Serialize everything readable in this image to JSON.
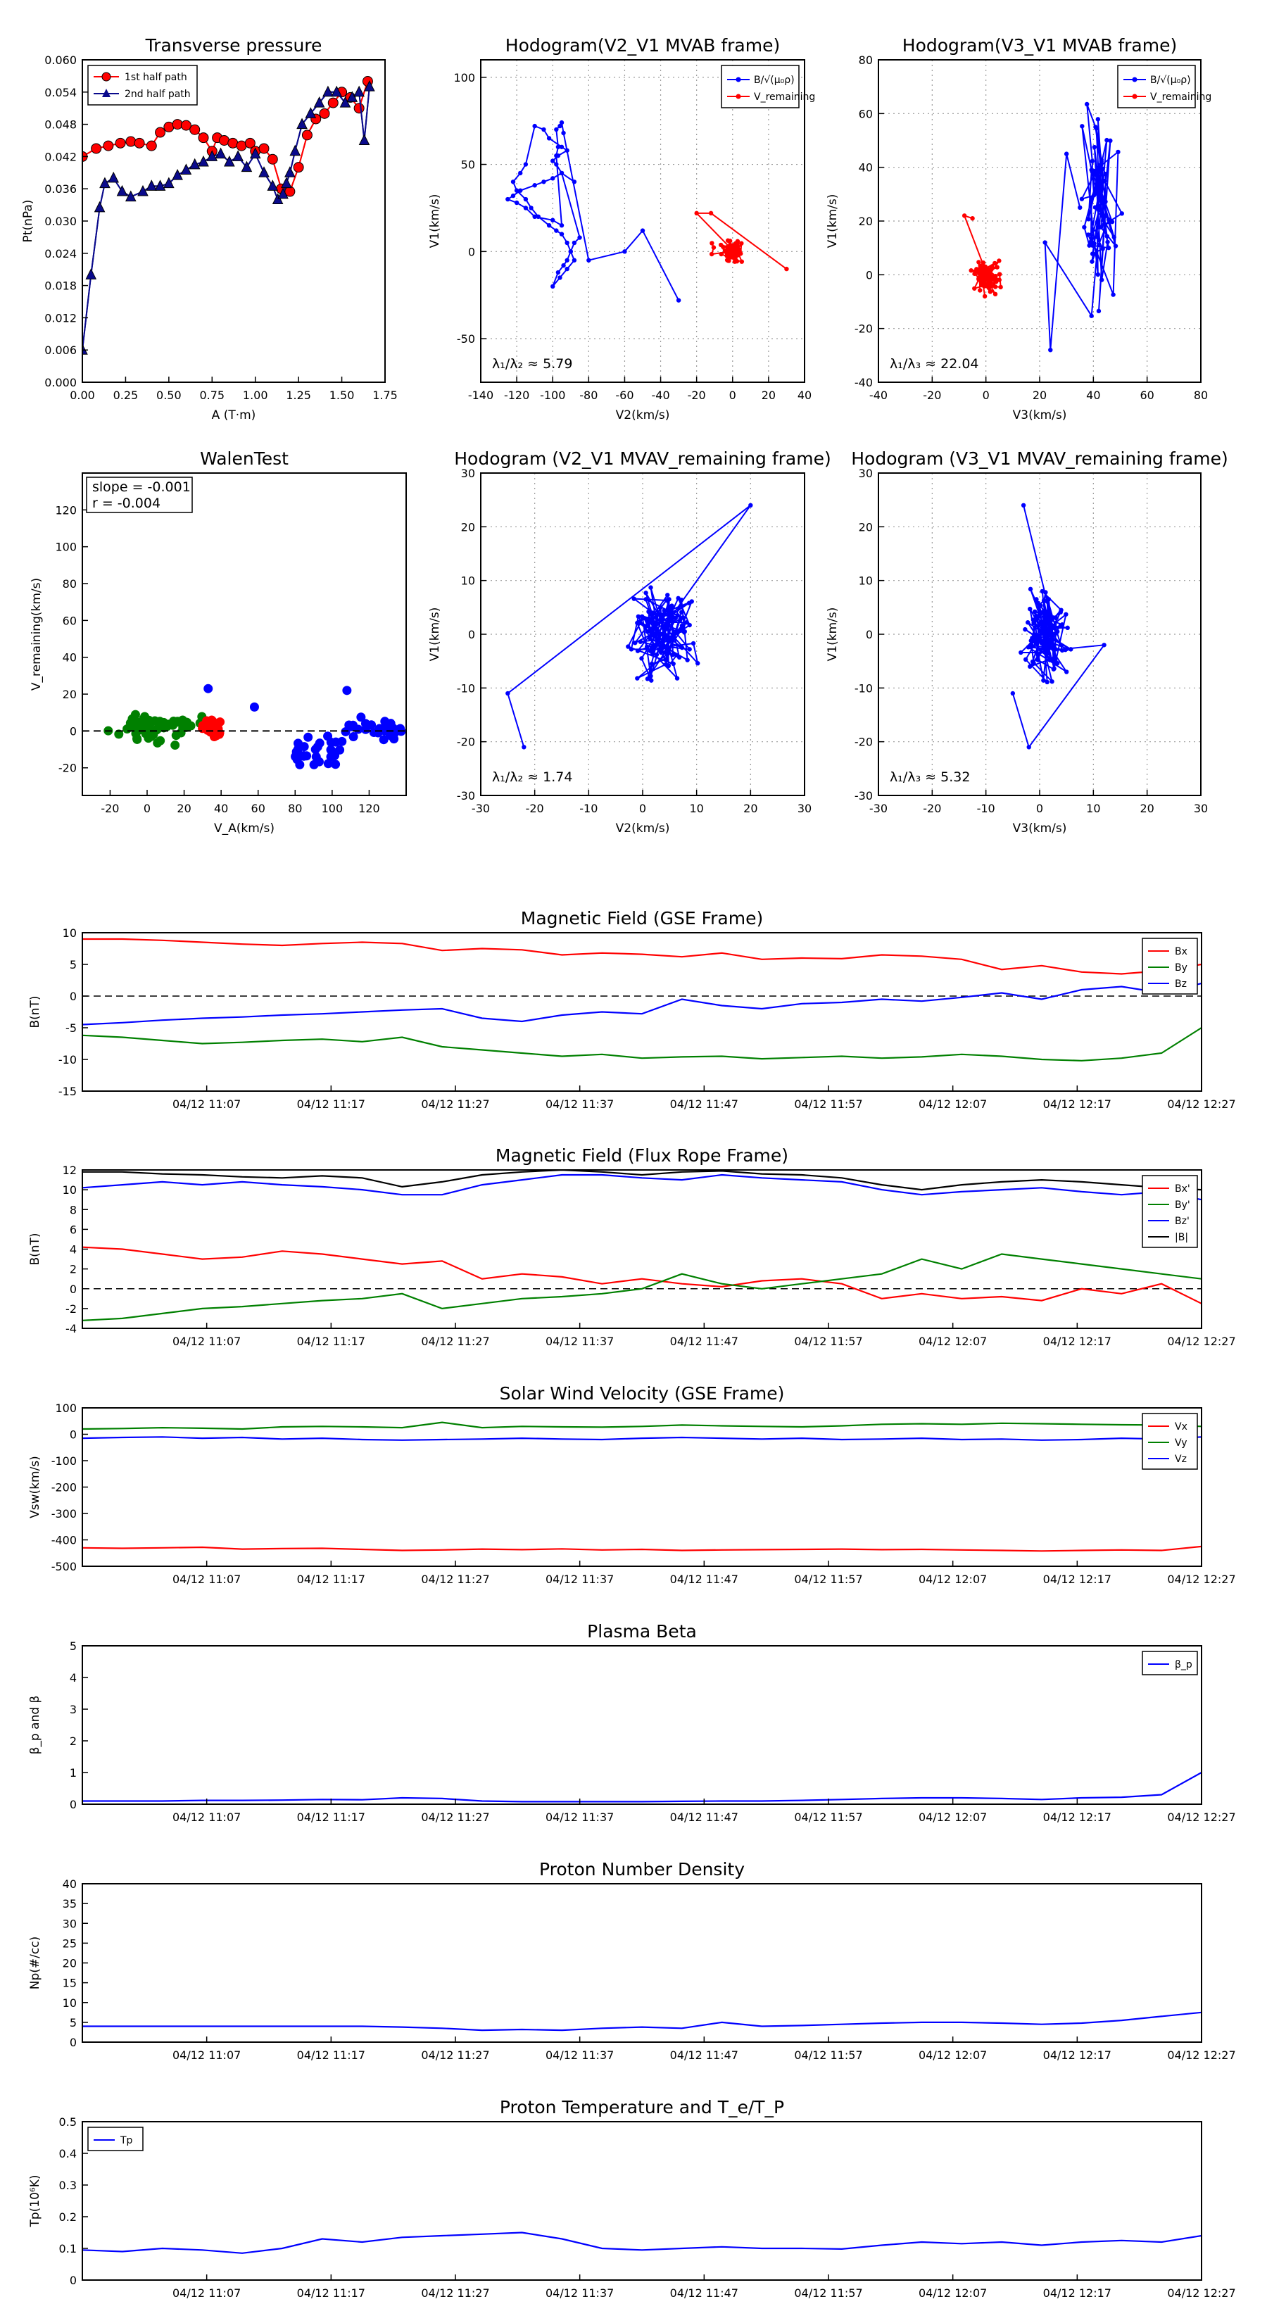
{
  "figure": {
    "background": "#ffffff"
  },
  "colors": {
    "red": "#ff0000",
    "green": "#008000",
    "blue": "#0000ff",
    "navy": "#0a0a8c",
    "black": "#000000",
    "grid": "#9a9a9a"
  },
  "chart_data": [
    {
      "id": "pt",
      "type": "scatter",
      "title": "Transverse pressure",
      "xlabel": "A (T·m)",
      "ylabel": "Pt(nPa)",
      "xlim": [
        0,
        1.75
      ],
      "ylim": [
        0,
        0.06
      ],
      "grid": false,
      "legend_position": "upper-left",
      "xticks": [
        0,
        0.25,
        0.5,
        0.75,
        1.0,
        1.25,
        1.5,
        1.75
      ],
      "xtick_labels": [
        "0.00",
        "0.25",
        "0.50",
        "0.75",
        "1.00",
        "1.25",
        "1.50",
        "1.75"
      ],
      "yticks": [
        0,
        0.006,
        0.012,
        0.018,
        0.024,
        0.03,
        0.036,
        0.042,
        0.048,
        0.054,
        0.06
      ],
      "ytick_labels": [
        "0.000",
        "0.006",
        "0.012",
        "0.018",
        "0.024",
        "0.030",
        "0.036",
        "0.042",
        "0.048",
        "0.054",
        "0.060"
      ],
      "series": [
        {
          "name": "1st half path",
          "color": "#ff0000",
          "marker": "circle",
          "x": [
            0.0,
            0.08,
            0.15,
            0.22,
            0.28,
            0.33,
            0.4,
            0.45,
            0.5,
            0.55,
            0.6,
            0.65,
            0.7,
            0.75,
            0.78,
            0.82,
            0.87,
            0.92,
            0.97,
            1.0,
            1.05,
            1.1,
            1.15,
            1.2,
            1.25,
            1.3,
            1.35,
            1.4,
            1.45,
            1.5,
            1.55,
            1.6,
            1.65
          ],
          "y": [
            0.042,
            0.0435,
            0.044,
            0.0445,
            0.0448,
            0.0445,
            0.044,
            0.0465,
            0.0475,
            0.048,
            0.0478,
            0.047,
            0.0455,
            0.043,
            0.0455,
            0.045,
            0.0445,
            0.044,
            0.0445,
            0.043,
            0.0435,
            0.0415,
            0.036,
            0.0355,
            0.04,
            0.046,
            0.049,
            0.05,
            0.052,
            0.054,
            0.053,
            0.051,
            0.056
          ]
        },
        {
          "name": "2nd half path",
          "color": "#0a0a8c",
          "marker": "triangle",
          "x": [
            0.0,
            0.05,
            0.1,
            0.13,
            0.18,
            0.23,
            0.28,
            0.35,
            0.4,
            0.45,
            0.5,
            0.55,
            0.6,
            0.65,
            0.7,
            0.75,
            0.8,
            0.85,
            0.9,
            0.95,
            1.0,
            1.05,
            1.1,
            1.13,
            1.16,
            1.18,
            1.2,
            1.23,
            1.27,
            1.32,
            1.37,
            1.42,
            1.47,
            1.52,
            1.56,
            1.6,
            1.63,
            1.66
          ],
          "y": [
            0.006,
            0.02,
            0.0325,
            0.037,
            0.038,
            0.0355,
            0.0345,
            0.0355,
            0.0365,
            0.0365,
            0.037,
            0.0385,
            0.0395,
            0.0405,
            0.041,
            0.042,
            0.0425,
            0.041,
            0.042,
            0.04,
            0.0425,
            0.039,
            0.0365,
            0.034,
            0.035,
            0.037,
            0.039,
            0.043,
            0.048,
            0.05,
            0.052,
            0.054,
            0.054,
            0.052,
            0.053,
            0.054,
            0.045,
            0.055
          ]
        }
      ]
    },
    {
      "id": "hodo_mvab_v2",
      "type": "scatter",
      "title": "Hodogram(V2_V1 MVAB frame)",
      "xlabel": "V2(km/s)",
      "ylabel": "V1(km/s)",
      "xlim": [
        -140,
        40
      ],
      "ylim": [
        -75,
        110
      ],
      "grid": true,
      "legend_position": "upper-right",
      "xticks": [
        -140,
        -120,
        -100,
        -80,
        -60,
        -40,
        -20,
        0,
        20,
        40
      ],
      "yticks": [
        -50,
        0,
        50,
        100
      ],
      "annotation": "λ₁/λ₂ ≈ 5.79",
      "series": [
        {
          "name": "B/√(μ₀ρ)",
          "color": "#0000ff",
          "x": [],
          "y": []
        },
        {
          "name": "V_remaining",
          "color": "#ff0000",
          "x": [],
          "y": []
        }
      ]
    },
    {
      "id": "hodo_mvab_v3",
      "type": "scatter",
      "title": "Hodogram(V3_V1 MVAB frame)",
      "xlabel": "V3(km/s)",
      "ylabel": "V1(km/s)",
      "xlim": [
        -40,
        80
      ],
      "ylim": [
        -40,
        80
      ],
      "grid": true,
      "legend_position": "upper-right",
      "xticks": [
        -40,
        -20,
        0,
        20,
        40,
        60,
        80
      ],
      "yticks": [
        -40,
        -20,
        0,
        20,
        40,
        60,
        80
      ],
      "annotation": "λ₁/λ₃ ≈ 22.04",
      "series": [
        {
          "name": "B/√(μ₀ρ)",
          "color": "#0000ff",
          "x": [],
          "y": []
        },
        {
          "name": "V_remaining",
          "color": "#ff0000",
          "x": [],
          "y": []
        }
      ]
    },
    {
      "id": "walen",
      "type": "scatter",
      "title": "WalenTest",
      "xlabel": "V_A(km/s)",
      "ylabel": "V_remaining(km/s)",
      "xlim": [
        -35,
        140
      ],
      "ylim": [
        -35,
        140
      ],
      "grid": false,
      "xticks": [
        -20,
        0,
        20,
        40,
        60,
        80,
        100,
        120
      ],
      "yticks": [
        -20,
        0,
        20,
        40,
        60,
        80,
        100,
        120
      ],
      "slope_text": "slope = -0.001",
      "r_text": "r = -0.004",
      "series": [
        {
          "color": "#008000",
          "x": [],
          "y": []
        },
        {
          "color": "#ff0000",
          "x": [],
          "y": []
        },
        {
          "color": "#0000ff",
          "x": [],
          "y": []
        }
      ]
    },
    {
      "id": "hodo_mvav_v2",
      "type": "scatter",
      "title": "Hodogram (V2_V1 MVAV_remaining frame)",
      "xlabel": "V2(km/s)",
      "ylabel": "V1(km/s)",
      "xlim": [
        -30,
        30
      ],
      "ylim": [
        -30,
        30
      ],
      "grid": true,
      "xticks": [
        -30,
        -20,
        -10,
        0,
        10,
        20,
        30
      ],
      "yticks": [
        -30,
        -20,
        -10,
        0,
        10,
        20,
        30
      ],
      "annotation": "λ₁/λ₂ ≈ 1.74",
      "series": [
        {
          "color": "#0000ff",
          "x": [],
          "y": []
        }
      ]
    },
    {
      "id": "hodo_mvav_v3",
      "type": "scatter",
      "title": "Hodogram (V3_V1 MVAV_remaining frame)",
      "xlabel": "V3(km/s)",
      "ylabel": "V1(km/s)",
      "xlim": [
        -30,
        30
      ],
      "ylim": [
        -30,
        30
      ],
      "grid": true,
      "xticks": [
        -30,
        -20,
        -10,
        0,
        10,
        20,
        30
      ],
      "yticks": [
        -30,
        -20,
        -10,
        0,
        10,
        20,
        30
      ],
      "annotation": "λ₁/λ₃ ≈ 5.32",
      "series": [
        {
          "color": "#0000ff",
          "x": [],
          "y": []
        }
      ]
    },
    {
      "id": "bgse",
      "type": "line",
      "title": "Magnetic Field (GSE Frame)",
      "ylabel": "B(nT)",
      "xtick_labels": [
        "04/12 11:07",
        "04/12 11:17",
        "04/12 11:27",
        "04/12 11:37",
        "04/12 11:47",
        "04/12 11:57",
        "04/12 12:07",
        "04/12 12:17",
        "04/12 12:27"
      ],
      "ylim": [
        -15,
        10
      ],
      "yticks": [
        -15,
        -10,
        -5,
        0,
        5,
        10
      ],
      "zero_line": true,
      "legend_position": "upper-right",
      "series": [
        {
          "name": "Bx",
          "color": "#ff0000",
          "values": [
            9.0,
            9.0,
            8.8,
            8.5,
            8.2,
            8.0,
            8.3,
            8.5,
            8.3,
            7.2,
            7.5,
            7.3,
            6.5,
            6.8,
            6.6,
            6.2,
            6.8,
            5.8,
            6.0,
            5.9,
            6.5,
            6.3,
            5.8,
            4.2,
            4.8,
            3.8,
            3.5,
            4.0,
            5.0
          ]
        },
        {
          "name": "By",
          "color": "#008000",
          "values": [
            -6.2,
            -6.5,
            -7.0,
            -7.5,
            -7.3,
            -7.0,
            -6.8,
            -7.2,
            -6.5,
            -8.0,
            -8.5,
            -9.0,
            -9.5,
            -9.2,
            -9.8,
            -9.6,
            -9.5,
            -9.9,
            -9.7,
            -9.5,
            -9.8,
            -9.6,
            -9.2,
            -9.5,
            -10.0,
            -10.2,
            -9.8,
            -9.0,
            -5.0
          ]
        },
        {
          "name": "Bz",
          "color": "#0000ff",
          "values": [
            -4.5,
            -4.2,
            -3.8,
            -3.5,
            -3.3,
            -3.0,
            -2.8,
            -2.5,
            -2.2,
            -2.0,
            -3.5,
            -4.0,
            -3.0,
            -2.5,
            -2.8,
            -0.5,
            -1.5,
            -2.0,
            -1.2,
            -1.0,
            -0.5,
            -0.8,
            -0.2,
            0.5,
            -0.5,
            1.0,
            1.5,
            0.5,
            2.0
          ]
        }
      ]
    },
    {
      "id": "bfr",
      "type": "line",
      "title": "Magnetic Field (Flux Rope Frame)",
      "ylabel": "B(nT)",
      "xtick_labels": [
        "04/12 11:07",
        "04/12 11:17",
        "04/12 11:27",
        "04/12 11:37",
        "04/12 11:47",
        "04/12 11:57",
        "04/12 12:07",
        "04/12 12:17",
        "04/12 12:27"
      ],
      "ylim": [
        -4,
        12
      ],
      "yticks": [
        -4,
        -2,
        0,
        2,
        4,
        6,
        8,
        10,
        12
      ],
      "zero_line": true,
      "legend_position": "upper-right",
      "series": [
        {
          "name": "Bx'",
          "color": "#ff0000",
          "values": [
            4.2,
            4.0,
            3.5,
            3.0,
            3.2,
            3.8,
            3.5,
            3.0,
            2.5,
            2.8,
            1.0,
            1.5,
            1.2,
            0.5,
            1.0,
            0.5,
            0.2,
            0.8,
            1.0,
            0.5,
            -1.0,
            -0.5,
            -1.0,
            -0.8,
            -1.2,
            0.0,
            -0.5,
            0.5,
            -1.5
          ]
        },
        {
          "name": "By'",
          "color": "#008000",
          "values": [
            -3.2,
            -3.0,
            -2.5,
            -2.0,
            -1.8,
            -1.5,
            -1.2,
            -1.0,
            -0.5,
            -2.0,
            -1.5,
            -1.0,
            -0.8,
            -0.5,
            0.0,
            1.5,
            0.5,
            0.0,
            0.5,
            1.0,
            1.5,
            3.0,
            2.0,
            3.5,
            3.0,
            2.5,
            2.0,
            1.5,
            1.0
          ]
        },
        {
          "name": "Bz'",
          "color": "#0000ff",
          "values": [
            10.2,
            10.5,
            10.8,
            10.5,
            10.8,
            10.5,
            10.3,
            10.0,
            9.5,
            9.5,
            10.5,
            11.0,
            11.5,
            11.5,
            11.2,
            11.0,
            11.5,
            11.2,
            11.0,
            10.8,
            10.0,
            9.5,
            9.8,
            10.0,
            10.2,
            9.8,
            9.5,
            9.8,
            9.0
          ]
        },
        {
          "name": "|B|",
          "color": "#000000",
          "values": [
            11.8,
            11.8,
            11.6,
            11.5,
            11.3,
            11.2,
            11.4,
            11.2,
            10.3,
            10.8,
            11.5,
            11.8,
            12.0,
            11.8,
            11.5,
            11.8,
            11.9,
            11.6,
            11.5,
            11.2,
            10.5,
            10.0,
            10.5,
            10.8,
            11.0,
            10.8,
            10.5,
            10.2,
            10.0
          ]
        }
      ]
    },
    {
      "id": "vsw",
      "type": "line",
      "title": "Solar Wind Velocity (GSE Frame)",
      "ylabel": "Vsw(km/s)",
      "xtick_labels": [
        "04/12 11:07",
        "04/12 11:17",
        "04/12 11:27",
        "04/12 11:37",
        "04/12 11:47",
        "04/12 11:57",
        "04/12 12:07",
        "04/12 12:17",
        "04/12 12:27"
      ],
      "ylim": [
        -500,
        100
      ],
      "yticks": [
        -500,
        -400,
        -300,
        -200,
        -100,
        0,
        100
      ],
      "legend_position": "upper-right",
      "series": [
        {
          "name": "Vx",
          "color": "#ff0000",
          "values": [
            -430,
            -432,
            -430,
            -428,
            -435,
            -433,
            -432,
            -436,
            -440,
            -438,
            -435,
            -437,
            -434,
            -438,
            -436,
            -440,
            -438,
            -437,
            -436,
            -435,
            -437,
            -436,
            -438,
            -440,
            -442,
            -440,
            -438,
            -440,
            -425
          ]
        },
        {
          "name": "Vy",
          "color": "#008000",
          "values": [
            20,
            22,
            25,
            23,
            20,
            28,
            30,
            28,
            25,
            45,
            25,
            30,
            28,
            27,
            30,
            35,
            32,
            30,
            28,
            32,
            38,
            40,
            38,
            42,
            40,
            38,
            36,
            35,
            30
          ]
        },
        {
          "name": "Vz",
          "color": "#0000ff",
          "values": [
            -15,
            -12,
            -10,
            -15,
            -12,
            -18,
            -15,
            -20,
            -22,
            -20,
            -18,
            -15,
            -18,
            -20,
            -15,
            -12,
            -15,
            -18,
            -15,
            -20,
            -18,
            -15,
            -20,
            -18,
            -22,
            -20,
            -15,
            -18,
            -10
          ]
        }
      ]
    },
    {
      "id": "beta",
      "type": "line",
      "title": "Plasma Beta",
      "ylabel": "β_p and β",
      "xtick_labels": [
        "04/12 11:07",
        "04/12 11:17",
        "04/12 11:27",
        "04/12 11:37",
        "04/12 11:47",
        "04/12 11:57",
        "04/12 12:07",
        "04/12 12:17",
        "04/12 12:27"
      ],
      "ylim": [
        0,
        5
      ],
      "yticks": [
        0,
        1,
        2,
        3,
        4,
        5
      ],
      "legend_position": "upper-right",
      "series": [
        {
          "name": "β_p",
          "color": "#0000ff",
          "values": [
            0.1,
            0.1,
            0.1,
            0.12,
            0.12,
            0.13,
            0.15,
            0.14,
            0.2,
            0.18,
            0.1,
            0.08,
            0.08,
            0.08,
            0.08,
            0.09,
            0.1,
            0.1,
            0.12,
            0.15,
            0.18,
            0.2,
            0.2,
            0.18,
            0.15,
            0.2,
            0.22,
            0.3,
            1.0
          ]
        }
      ]
    },
    {
      "id": "np",
      "type": "line",
      "title": "Proton Number Density",
      "ylabel": "Np(#/cc)",
      "xtick_labels": [
        "04/12 11:07",
        "04/12 11:17",
        "04/12 11:27",
        "04/12 11:37",
        "04/12 11:47",
        "04/12 11:57",
        "04/12 12:07",
        "04/12 12:17",
        "04/12 12:27"
      ],
      "ylim": [
        0,
        40
      ],
      "yticks": [
        0,
        5,
        10,
        15,
        20,
        25,
        30,
        35,
        40
      ],
      "series": [
        {
          "name": "Np",
          "color": "#0000ff",
          "values": [
            4.0,
            4.0,
            4.0,
            4.0,
            4.0,
            4.0,
            4.0,
            4.0,
            3.8,
            3.5,
            3.0,
            3.2,
            3.0,
            3.5,
            3.8,
            3.5,
            5.0,
            4.0,
            4.2,
            4.5,
            4.8,
            5.0,
            5.0,
            4.8,
            4.5,
            4.8,
            5.5,
            6.5,
            7.5
          ]
        }
      ]
    },
    {
      "id": "tp",
      "type": "line",
      "title": "Proton Temperature and T_e/T_P",
      "ylabel": "Tp(10⁶K)",
      "xtick_labels": [
        "04/12 11:07",
        "04/12 11:17",
        "04/12 11:27",
        "04/12 11:37",
        "04/12 11:47",
        "04/12 11:57",
        "04/12 12:07",
        "04/12 12:17",
        "04/12 12:27"
      ],
      "ylim": [
        0,
        0.5
      ],
      "yticks": [
        0.0,
        0.1,
        0.2,
        0.3,
        0.4,
        0.5
      ],
      "legend_position": "upper-left",
      "series": [
        {
          "name": "Tp",
          "color": "#0000ff",
          "values": [
            0.095,
            0.09,
            0.1,
            0.095,
            0.085,
            0.1,
            0.13,
            0.12,
            0.135,
            0.14,
            0.145,
            0.15,
            0.13,
            0.1,
            0.095,
            0.1,
            0.105,
            0.1,
            0.1,
            0.098,
            0.11,
            0.12,
            0.115,
            0.12,
            0.11,
            0.12,
            0.125,
            0.12,
            0.14
          ]
        }
      ]
    }
  ]
}
